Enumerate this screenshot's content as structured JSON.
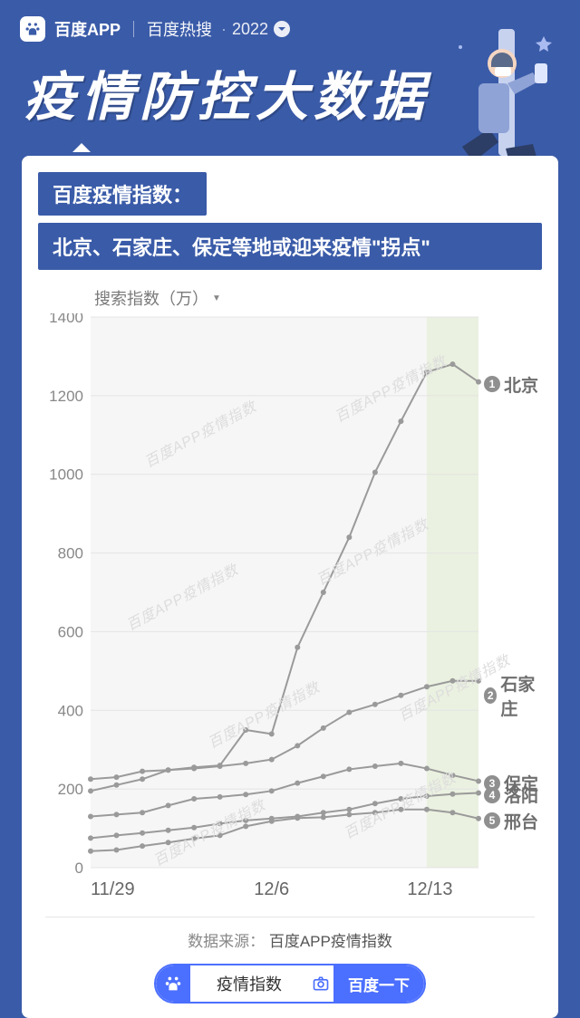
{
  "header": {
    "app_name": "百度APP",
    "hot_search": "百度热搜",
    "year": "2022"
  },
  "hero": {
    "title": "疫情防控大数据"
  },
  "card": {
    "banner1": "百度疫情指数：",
    "banner2": "北京、石家庄、保定等地或迎来疫情\"拐点\"",
    "y_axis_title": "搜索指数（万）",
    "source_label": "数据来源：",
    "source_value": "百度APP疫情指数",
    "watermark": "百度APP疫情指数"
  },
  "chart": {
    "type": "line",
    "background_color": "#f6f6f6",
    "grid_color": "#e4e4e4",
    "line_color": "#9a9a9a",
    "line_width": 2,
    "marker_radius": 3,
    "highlight_band_color": "#e8f0dc",
    "ylim": [
      0,
      1400
    ],
    "ytick_step": 200,
    "yticks": [
      0,
      200,
      400,
      600,
      800,
      1000,
      1200,
      1400
    ],
    "x_labels": [
      "11/29",
      "12/6",
      "12/13"
    ],
    "x_indices": [
      0,
      7,
      14
    ],
    "highlight_band_x": [
      13,
      15
    ],
    "tick_fontsize": 17,
    "x_tick_fontsize": 20,
    "label_fontsize": 19,
    "series": [
      {
        "rank": "1",
        "label": "北京",
        "y": [
          225,
          230,
          245,
          248,
          255,
          260,
          350,
          340,
          560,
          700,
          840,
          1005,
          1135,
          1260,
          1280,
          1235
        ]
      },
      {
        "rank": "2",
        "label": "石家庄",
        "y": [
          195,
          210,
          225,
          248,
          252,
          258,
          265,
          275,
          310,
          355,
          395,
          415,
          438,
          460,
          475,
          475
        ]
      },
      {
        "rank": "3",
        "label": "保定",
        "y": [
          130,
          135,
          140,
          158,
          175,
          180,
          186,
          195,
          215,
          232,
          250,
          258,
          265,
          252,
          235,
          220
        ]
      },
      {
        "rank": "4",
        "label": "洛阳",
        "y": [
          75,
          82,
          88,
          95,
          102,
          112,
          120,
          125,
          130,
          140,
          148,
          163,
          175,
          182,
          187,
          190
        ]
      },
      {
        "rank": "5",
        "label": "邢台",
        "y": [
          42,
          45,
          55,
          64,
          74,
          82,
          105,
          118,
          126,
          128,
          135,
          140,
          148,
          148,
          140,
          125
        ]
      }
    ]
  },
  "search_pill": {
    "placeholder": "疫情指数",
    "cta": "百度一下"
  },
  "colors": {
    "page_bg": "#3a5ba8",
    "card_bg": "#ffffff",
    "accent": "#4b6fff",
    "text_muted": "#888888"
  }
}
